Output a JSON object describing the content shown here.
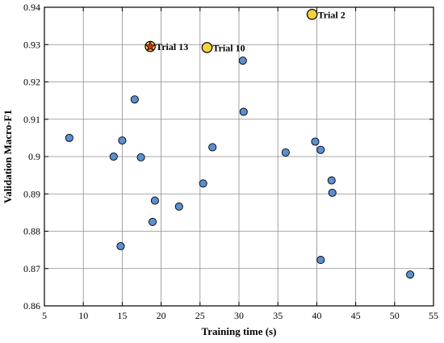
{
  "chart_data": {
    "type": "scatter",
    "title": "",
    "xlabel": "Training time (s)",
    "ylabel": "Validation Macro-F1",
    "xlim": [
      5,
      55
    ],
    "ylim": [
      0.86,
      0.94
    ],
    "xticks": [
      5,
      10,
      15,
      20,
      25,
      30,
      35,
      40,
      45,
      50,
      55
    ],
    "yticks": [
      0.86,
      0.87,
      0.88,
      0.89,
      0.9,
      0.91,
      0.92,
      0.93,
      0.94
    ],
    "xtick_labels": [
      "5",
      "10",
      "15",
      "20",
      "25",
      "30",
      "35",
      "40",
      "45",
      "50",
      "55"
    ],
    "ytick_labels": [
      "0.86",
      "0.87",
      "0.88",
      "0.89",
      "0.9",
      "0.91",
      "0.92",
      "0.93",
      "0.94"
    ],
    "grid": true,
    "legend": "none",
    "colors": {
      "point_fill": "#5b8fd0",
      "highlight_fill": "#f5d23c",
      "best_marker": "#d62728",
      "edge": "#000000"
    },
    "points": [
      {
        "x": 8.2,
        "y": 0.905
      },
      {
        "x": 13.9,
        "y": 0.9
      },
      {
        "x": 15.0,
        "y": 0.9043
      },
      {
        "x": 14.8,
        "y": 0.876
      },
      {
        "x": 16.6,
        "y": 0.9153
      },
      {
        "x": 17.4,
        "y": 0.8998
      },
      {
        "x": 18.9,
        "y": 0.8825
      },
      {
        "x": 19.2,
        "y": 0.8882
      },
      {
        "x": 22.3,
        "y": 0.8866
      },
      {
        "x": 25.4,
        "y": 0.8928
      },
      {
        "x": 26.6,
        "y": 0.9025
      },
      {
        "x": 30.5,
        "y": 0.9257
      },
      {
        "x": 30.6,
        "y": 0.912
      },
      {
        "x": 36.0,
        "y": 0.9011
      },
      {
        "x": 39.8,
        "y": 0.904
      },
      {
        "x": 40.5,
        "y": 0.9018
      },
      {
        "x": 40.5,
        "y": 0.8723
      },
      {
        "x": 41.9,
        "y": 0.8936
      },
      {
        "x": 42.0,
        "y": 0.8903
      },
      {
        "x": 52.0,
        "y": 0.8684
      }
    ],
    "highlighted": [
      {
        "label": "Trial 2",
        "x": 39.4,
        "y": 0.9381
      },
      {
        "label": "Trial 10",
        "x": 25.9,
        "y": 0.9292
      },
      {
        "label": "Trial 13",
        "x": 18.6,
        "y": 0.9295,
        "best": true
      }
    ]
  }
}
